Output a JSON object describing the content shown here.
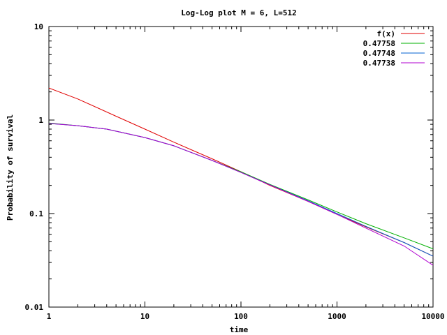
{
  "chart_data": {
    "type": "line",
    "title": "Log-Log plot M = 6, L=512",
    "xlabel": "time",
    "ylabel": "Probability of survival",
    "xscale": "log",
    "yscale": "log",
    "xlim": [
      1,
      10000
    ],
    "ylim": [
      0.01,
      10
    ],
    "x_ticks": [
      "1",
      "10",
      "100",
      "1000",
      "10000"
    ],
    "y_ticks": [
      "0.01",
      "0.1",
      "1",
      "10"
    ],
    "grid": false,
    "legend_position": "top-right",
    "series": [
      {
        "name": "f(x)",
        "color": "#e00000",
        "x": [
          1,
          2,
          5,
          10,
          20,
          50,
          100,
          200,
          500,
          1000,
          2000,
          5000,
          10000
        ],
        "y": [
          2.2,
          1.68,
          1.1,
          0.8,
          0.58,
          0.385,
          0.28,
          0.2,
          0.135,
          0.098,
          0.072,
          0.049,
          0.035
        ]
      },
      {
        "name": "0.47758",
        "color": "#00b000",
        "x": [
          1,
          2,
          4,
          10,
          20,
          50,
          100,
          200,
          500,
          1000,
          2000,
          5000,
          10000
        ],
        "y": [
          0.93,
          0.87,
          0.8,
          0.65,
          0.53,
          0.37,
          0.28,
          0.205,
          0.14,
          0.104,
          0.078,
          0.055,
          0.042
        ]
      },
      {
        "name": "0.47748",
        "color": "#0060d0",
        "x": [
          1,
          2,
          4,
          10,
          20,
          50,
          100,
          200,
          500,
          1000,
          2000,
          5000,
          10000
        ],
        "y": [
          0.92,
          0.87,
          0.8,
          0.65,
          0.53,
          0.37,
          0.275,
          0.203,
          0.137,
          0.1,
          0.073,
          0.049,
          0.035
        ]
      },
      {
        "name": "0.47738",
        "color": "#b000d0",
        "x": [
          1,
          2,
          4,
          10,
          20,
          50,
          100,
          200,
          500,
          1000,
          2000,
          5000,
          10000
        ],
        "y": [
          0.92,
          0.87,
          0.8,
          0.65,
          0.53,
          0.37,
          0.275,
          0.202,
          0.135,
          0.098,
          0.07,
          0.045,
          0.028
        ]
      }
    ]
  }
}
